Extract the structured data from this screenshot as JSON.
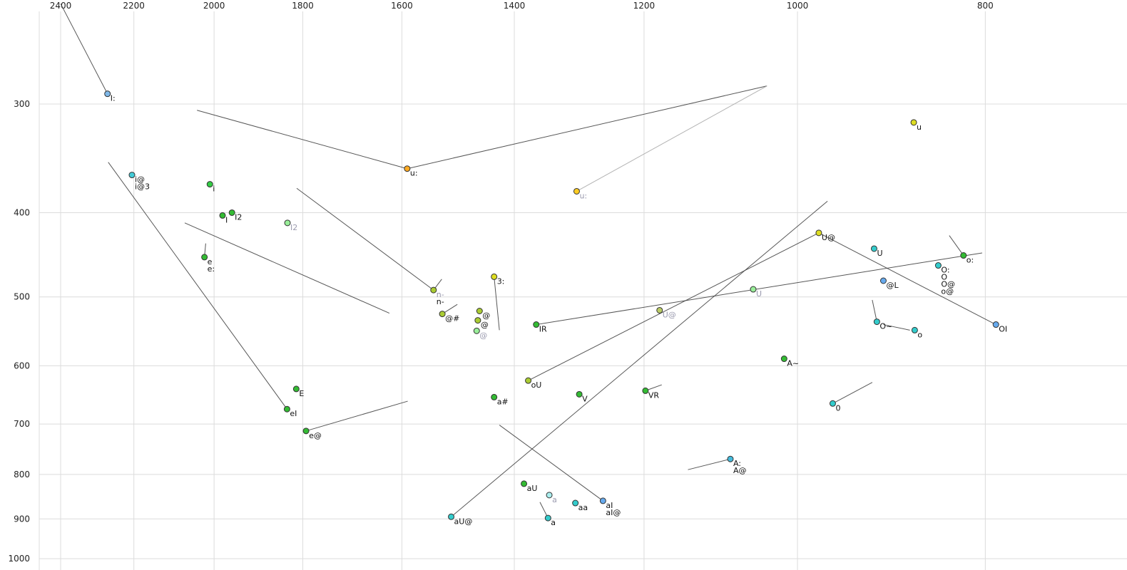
{
  "chart_data": {
    "type": "scatter",
    "title": "",
    "x_axis": {
      "label": "",
      "ticks": [
        2400,
        2200,
        2000,
        1800,
        1600,
        1400,
        1200,
        1000,
        800
      ],
      "scale": "log",
      "reversed": true,
      "position": "top"
    },
    "y_axis": {
      "label": "",
      "ticks": [
        300,
        400,
        500,
        600,
        700,
        800,
        900,
        1000
      ],
      "scale": "log",
      "reversed": true,
      "position": "left"
    },
    "grid": true,
    "colors": {
      "grid": "#dcdcdc",
      "line": "#444444",
      "gray_line": "#aaaaaa",
      "label": "#111111",
      "gray_label": "#9a9aae",
      "tick_label": "#222222",
      "point_stroke": "#333333"
    },
    "points": [
      {
        "labels": [
          "I:"
        ],
        "f2": 2270,
        "f1": 292,
        "color": "#7fb8e8"
      },
      {
        "labels": [
          "i@",
          "i@3"
        ],
        "f2": 2205,
        "f1": 362,
        "color": "#44ccd8"
      },
      {
        "labels": [
          "i"
        ],
        "f2": 2010,
        "f1": 371,
        "color": "#33cc44"
      },
      {
        "labels": [
          "I"
        ],
        "f2": 1980,
        "f1": 403,
        "color": "#33bb33"
      },
      {
        "labels": [
          "I2"
        ],
        "f2": 1958,
        "f1": 400,
        "color": "#33bb33"
      },
      {
        "labels": [
          "I2"
        ],
        "f2": 1833,
        "f1": 411,
        "color": "#99ee99",
        "gray": true
      },
      {
        "labels": [
          "e",
          "e:"
        ],
        "f2": 2023,
        "f1": 450,
        "color": "#33bb33"
      },
      {
        "labels": [
          "u:"
        ],
        "f2": 1590,
        "f1": 356,
        "color": "#ffaa22"
      },
      {
        "labels": [
          "u:"
        ],
        "f2": 1300,
        "f1": 378,
        "color": "#ffcc22",
        "gray": true
      },
      {
        "labels": [
          "u"
        ],
        "f2": 871,
        "f1": 315,
        "color": "#dddd22"
      },
      {
        "labels": [
          "U@"
        ],
        "f2": 975,
        "f1": 422,
        "color": "#dddd22"
      },
      {
        "labels": [
          "U"
        ],
        "f2": 913,
        "f1": 440,
        "color": "#33cccc"
      },
      {
        "labels": [
          "o:"
        ],
        "f2": 821,
        "f1": 448,
        "color": "#33bb33"
      },
      {
        "labels": [
          "O:",
          "O",
          "O@",
          "o@"
        ],
        "f2": 846,
        "f1": 460,
        "color": "#33cccc"
      },
      {
        "labels": [
          "@L"
        ],
        "f2": 903,
        "f1": 479,
        "color": "#66aaee"
      },
      {
        "labels": [
          "U"
        ],
        "f2": 1054,
        "f1": 490,
        "color": "#99ee99",
        "gray": true
      },
      {
        "labels": [
          "n-",
          "n-"
        ],
        "f2": 1541,
        "f1": 491,
        "color": "#aacc33",
        "label_gray": [
          true,
          false
        ]
      },
      {
        "labels": [
          "3:"
        ],
        "f2": 1434,
        "f1": 474,
        "color": "#dddd22"
      },
      {
        "labels": [
          "@#"
        ],
        "f2": 1525,
        "f1": 523,
        "color": "#aacc33"
      },
      {
        "labels": [
          "@"
        ],
        "f2": 1459,
        "f1": 519,
        "color": "#aacc33"
      },
      {
        "labels": [
          "@"
        ],
        "f2": 1462,
        "f1": 532,
        "color": "#aacc33"
      },
      {
        "labels": [
          "@"
        ],
        "f2": 1464,
        "f1": 547,
        "color": "#99ee99",
        "gray": true
      },
      {
        "labels": [
          "U@"
        ],
        "f2": 1178,
        "f1": 518,
        "color": "#bbcc66",
        "gray": true
      },
      {
        "labels": [
          "IR"
        ],
        "f2": 1364,
        "f1": 538,
        "color": "#33bb33"
      },
      {
        "labels": [
          "O~"
        ],
        "f2": 910,
        "f1": 534,
        "color": "#33cccc"
      },
      {
        "labels": [
          "o"
        ],
        "f2": 870,
        "f1": 546,
        "color": "#33cccc"
      },
      {
        "labels": [
          "OI"
        ],
        "f2": 790,
        "f1": 538,
        "color": "#66aaee"
      },
      {
        "labels": [
          "A~"
        ],
        "f2": 1016,
        "f1": 589,
        "color": "#33bb33"
      },
      {
        "labels": [
          "oU"
        ],
        "f2": 1377,
        "f1": 624,
        "color": "#aacc33"
      },
      {
        "labels": [
          "V"
        ],
        "f2": 1296,
        "f1": 647,
        "color": "#33bb33"
      },
      {
        "labels": [
          "VR"
        ],
        "f2": 1198,
        "f1": 641,
        "color": "#33bb33"
      },
      {
        "labels": [
          "E"
        ],
        "f2": 1814,
        "f1": 638,
        "color": "#33bb33"
      },
      {
        "labels": [
          "a#"
        ],
        "f2": 1434,
        "f1": 652,
        "color": "#33bb33"
      },
      {
        "labels": [
          "0"
        ],
        "f2": 959,
        "f1": 663,
        "color": "#33cccc"
      },
      {
        "labels": [
          "eI"
        ],
        "f2": 1834,
        "f1": 673,
        "color": "#33bb33"
      },
      {
        "labels": [
          "e@"
        ],
        "f2": 1793,
        "f1": 713,
        "color": "#33bb33"
      },
      {
        "labels": [
          "A:",
          "A@"
        ],
        "f2": 1083,
        "f1": 768,
        "color": "#44bbdd"
      },
      {
        "labels": [
          "aU"
        ],
        "f2": 1384,
        "f1": 820,
        "color": "#33bb33"
      },
      {
        "labels": [
          "a"
        ],
        "f2": 1343,
        "f1": 845,
        "color": "#aaeeee",
        "gray": true
      },
      {
        "labels": [
          "aa"
        ],
        "f2": 1302,
        "f1": 863,
        "color": "#33cccc"
      },
      {
        "labels": [
          "aI",
          "aI@"
        ],
        "f2": 1260,
        "f1": 858,
        "color": "#66aaee"
      },
      {
        "labels": [
          "aU@"
        ],
        "f2": 1509,
        "f1": 895,
        "color": "#33cccc"
      },
      {
        "labels": [
          "a"
        ],
        "f2": 1345,
        "f1": 898,
        "color": "#33cccc"
      }
    ],
    "lines": [
      {
        "p": [
          [
            2400,
            230
          ],
          [
            2270,
            292
          ]
        ]
      },
      {
        "p": [
          [
            2041,
            305
          ],
          [
            1590,
            356
          ]
        ]
      },
      {
        "p": [
          [
            1590,
            356
          ],
          [
            1037,
            286
          ]
        ]
      },
      {
        "p": [
          [
            1037,
            286
          ],
          [
            1300,
            378
          ]
        ],
        "gray": true
      },
      {
        "p": [
          [
            2268,
            350
          ],
          [
            1834,
            673
          ]
        ]
      },
      {
        "p": [
          [
            2071,
            411
          ],
          [
            1624,
            522
          ]
        ]
      },
      {
        "p": [
          [
            1813,
            375
          ],
          [
            1541,
            491
          ]
        ]
      },
      {
        "p": [
          [
            1434,
            474
          ],
          [
            1425,
            546
          ]
        ]
      },
      {
        "p": [
          [
            1364,
            538
          ],
          [
            803,
            445
          ]
        ]
      },
      {
        "p": [
          [
            1377,
            624
          ],
          [
            975,
            422
          ]
        ]
      },
      {
        "p": [
          [
            1509,
            895
          ],
          [
            965,
            388
          ]
        ]
      },
      {
        "p": [
          [
            1260,
            858
          ],
          [
            1425,
            702
          ]
        ]
      },
      {
        "p": [
          [
            1083,
            768
          ],
          [
            1139,
            790
          ]
        ]
      },
      {
        "p": [
          [
            959,
            663
          ],
          [
            915,
            627
          ]
        ]
      },
      {
        "p": [
          [
            910,
            534
          ],
          [
            915,
            504
          ]
        ]
      },
      {
        "p": [
          [
            903,
            538
          ],
          [
            875,
            546
          ]
        ]
      },
      {
        "p": [
          [
            821,
            448
          ],
          [
            835,
            425
          ]
        ]
      },
      {
        "p": [
          [
            1198,
            641
          ],
          [
            1175,
            631
          ]
        ]
      },
      {
        "p": [
          [
            2023,
            450
          ],
          [
            2020,
            434
          ]
        ]
      },
      {
        "p": [
          [
            1541,
            491
          ],
          [
            1526,
            477
          ]
        ]
      },
      {
        "p": [
          [
            1525,
            523
          ],
          [
            1498,
            510
          ]
        ]
      },
      {
        "p": [
          [
            975,
            422
          ],
          [
            790,
            538
          ]
        ]
      },
      {
        "p": [
          [
            1793,
            713
          ],
          [
            1589,
            659
          ]
        ]
      },
      {
        "p": [
          [
            1345,
            898
          ],
          [
            1358,
            861
          ]
        ]
      }
    ]
  }
}
